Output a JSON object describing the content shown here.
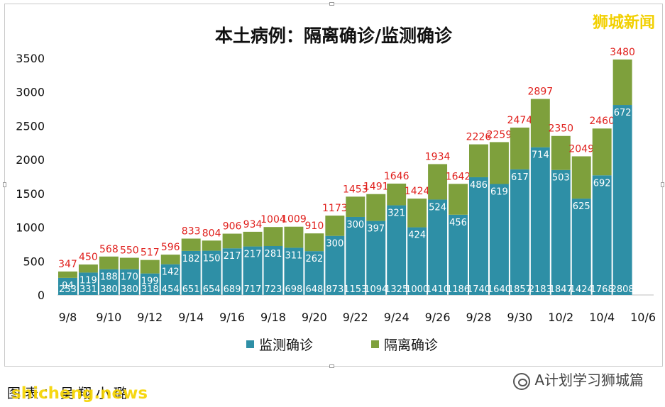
{
  "brand_watermark": "狮城新闻",
  "source_caption": "图表：吴翔小璐",
  "footer_watermark_left": "shicheng.news",
  "footer_watermark_right": "A计划学习狮城篇",
  "colors": {
    "surveillance": "#2e8fa6",
    "quarantine": "#7ea03c",
    "total_label": "#e0201d"
  },
  "chart_data": {
    "type": "bar",
    "stacked": true,
    "title": "本土病例：隔离确诊/监测确诊",
    "xlabel": "",
    "ylabel": "",
    "ylim": [
      0,
      3500
    ],
    "yticks": [
      0,
      500,
      1000,
      1500,
      2000,
      2500,
      3000,
      3500
    ],
    "grid": false,
    "legend_position": "bottom",
    "categories": [
      "9/8",
      "9/9",
      "9/10",
      "9/11",
      "9/12",
      "9/13",
      "9/14",
      "9/15",
      "9/16",
      "9/17",
      "9/18",
      "9/19",
      "9/20",
      "9/21",
      "9/22",
      "9/23",
      "9/24",
      "9/25",
      "9/26",
      "9/27",
      "9/28",
      "9/29",
      "9/30",
      "10/1",
      "10/2",
      "10/3",
      "10/4",
      "10/5",
      "10/6"
    ],
    "x_tick_labels": [
      "9/8",
      "9/10",
      "9/12",
      "9/14",
      "9/16",
      "9/18",
      "9/20",
      "9/22",
      "9/24",
      "9/26",
      "9/28",
      "9/30",
      "10/2",
      "10/4",
      "10/6"
    ],
    "series": [
      {
        "name": "监测确诊",
        "values": [
          253,
          331,
          380,
          380,
          318,
          454,
          651,
          654,
          689,
          717,
          723,
          698,
          648,
          873,
          1153,
          1094,
          1325,
          1000,
          1410,
          1186,
          1740,
          1640,
          1857,
          2183,
          1847,
          1424,
          1768,
          2808,
          null
        ]
      },
      {
        "name": "隔离确诊",
        "values": [
          94,
          119,
          188,
          170,
          199,
          142,
          182,
          150,
          217,
          217,
          281,
          311,
          262,
          300,
          300,
          397,
          321,
          424,
          524,
          456,
          486,
          619,
          617,
          714,
          503,
          625,
          692,
          672,
          null
        ]
      }
    ],
    "totals": [
      347,
      450,
      568,
      550,
      517,
      596,
      833,
      804,
      906,
      934,
      1004,
      1009,
      910,
      1173,
      1453,
      1491,
      1646,
      1424,
      1934,
      1642,
      2226,
      2259,
      2474,
      2897,
      2350,
      2049,
      2460,
      3480,
      null
    ]
  }
}
